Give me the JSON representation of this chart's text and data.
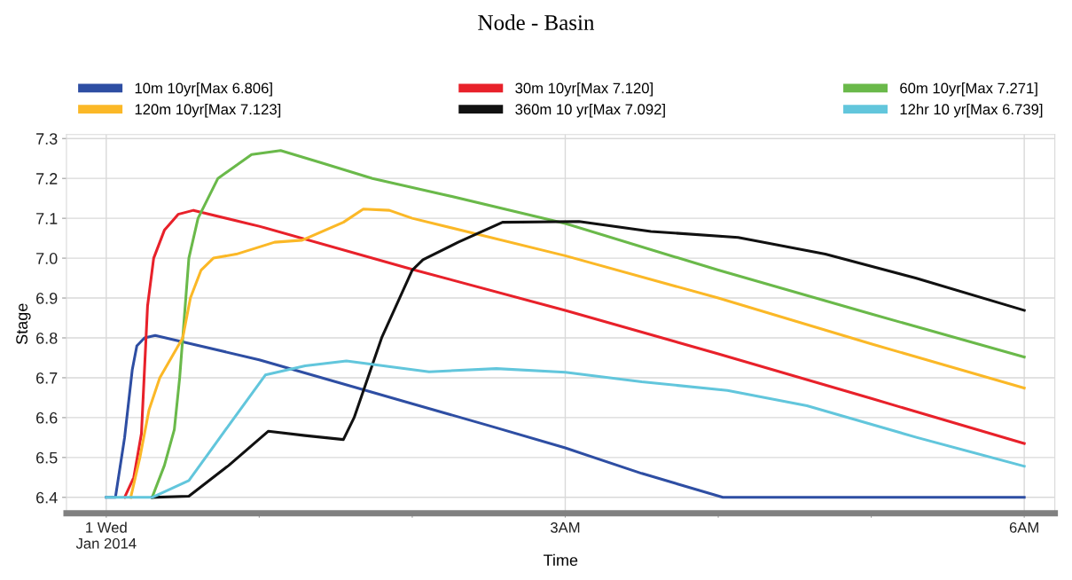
{
  "chart_data": {
    "type": "line",
    "title": "Node - Basin",
    "xlabel": "Time",
    "ylabel": "Stage",
    "xlim": [
      -0.26,
      6.2
    ],
    "ylim": [
      6.36,
      7.31
    ],
    "xticks": [
      {
        "value": 0,
        "label": "1 Wed\nJan 2014"
      },
      {
        "value": 1,
        "label": null
      },
      {
        "value": 2,
        "label": null
      },
      {
        "value": 3,
        "label": "3AM"
      },
      {
        "value": 4,
        "label": null
      },
      {
        "value": 5,
        "label": null
      },
      {
        "value": 6,
        "label": "6AM"
      }
    ],
    "yticks": [
      {
        "value": 6.4,
        "label": "6.4"
      },
      {
        "value": 6.5,
        "label": "6.5"
      },
      {
        "value": 6.6,
        "label": "6.6"
      },
      {
        "value": 6.7,
        "label": "6.7"
      },
      {
        "value": 6.8,
        "label": "6.8"
      },
      {
        "value": 6.9,
        "label": "6.9"
      },
      {
        "value": 7.0,
        "label": "7.0"
      },
      {
        "value": 7.1,
        "label": "7.1"
      },
      {
        "value": 7.2,
        "label": "7.2"
      },
      {
        "value": 7.3,
        "label": "7.3"
      }
    ],
    "grid": true,
    "legend": "top",
    "marker": "none",
    "line_style": "solid",
    "series": [
      {
        "name": "10m 10yr[Max 6.806]",
        "color": "#2e4ea3",
        "x": [
          0,
          0.06,
          0.12,
          0.17,
          0.2,
          0.25,
          0.32,
          0.5,
          1,
          1.5,
          2,
          2.5,
          3,
          3.5,
          4.03,
          6
        ],
        "values": [
          6.4,
          6.4,
          6.55,
          6.72,
          6.78,
          6.8,
          6.806,
          6.79,
          6.745,
          6.69,
          6.635,
          6.58,
          6.524,
          6.46,
          6.4,
          6.4
        ]
      },
      {
        "name": "30m 10yr[Max 7.120]",
        "color": "#e8212a",
        "x": [
          0.12,
          0.18,
          0.23,
          0.27,
          0.31,
          0.38,
          0.47,
          0.57,
          1,
          2,
          3,
          4,
          5,
          6
        ],
        "values": [
          6.4,
          6.45,
          6.56,
          6.88,
          7.0,
          7.07,
          7.11,
          7.12,
          7.08,
          6.972,
          6.869,
          6.76,
          6.648,
          6.535
        ]
      },
      {
        "name": "60m 10yr[Max 7.271]",
        "color": "#6ab94a",
        "x": [
          0.3,
          0.38,
          0.445,
          0.48,
          0.51,
          0.54,
          0.6,
          0.73,
          0.95,
          1.14,
          1.4,
          1.74,
          2.2,
          3,
          4,
          5,
          6
        ],
        "values": [
          6.4,
          6.48,
          6.57,
          6.7,
          6.85,
          7.0,
          7.1,
          7.2,
          7.26,
          7.27,
          7.24,
          7.2,
          7.16,
          7.087,
          6.97,
          6.86,
          6.752
        ]
      },
      {
        "name": "120m 10yr[Max 7.123]",
        "color": "#fbb827",
        "x": [
          0.16,
          0.22,
          0.28,
          0.35,
          0.5,
          0.55,
          0.62,
          0.7,
          0.85,
          1.1,
          1.28,
          1.55,
          1.68,
          1.85,
          2,
          3,
          4,
          5,
          6
        ],
        "values": [
          6.4,
          6.5,
          6.62,
          6.7,
          6.8,
          6.9,
          6.97,
          7.0,
          7.01,
          7.04,
          7.045,
          7.09,
          7.123,
          7.12,
          7.1,
          7.006,
          6.9,
          6.785,
          6.674
        ]
      },
      {
        "name": "360m 10 yr[Max 7.092]",
        "color": "#111111",
        "x": [
          0.3,
          0.54,
          0.8,
          1.06,
          1.3,
          1.55,
          1.62,
          1.8,
          2.0,
          2.07,
          2.3,
          2.59,
          3.09,
          3.56,
          4.13,
          4.7,
          5.29,
          6
        ],
        "values": [
          6.4,
          6.403,
          6.48,
          6.566,
          6.555,
          6.545,
          6.6,
          6.8,
          6.97,
          6.996,
          7.04,
          7.09,
          7.092,
          7.067,
          7.052,
          7.01,
          6.95,
          6.869
        ]
      },
      {
        "name": "12hr 10 yr[Max 6.739]",
        "color": "#62c6dc",
        "x": [
          0,
          0.3,
          0.54,
          0.8,
          1.04,
          1.3,
          1.57,
          2.11,
          2.55,
          3,
          3.5,
          4.06,
          4.58,
          5.3,
          6
        ],
        "values": [
          6.4,
          6.4,
          6.442,
          6.58,
          6.707,
          6.73,
          6.742,
          6.715,
          6.723,
          6.714,
          6.69,
          6.668,
          6.63,
          6.55,
          6.478
        ]
      }
    ]
  }
}
